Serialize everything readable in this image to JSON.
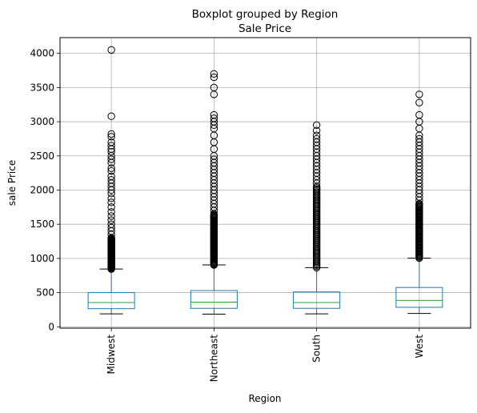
{
  "chart_data": {
    "type": "boxplot",
    "suptitle": "Boxplot grouped by Region",
    "title": "Sale Price",
    "xlabel": "Region",
    "ylabel": "sale Price",
    "ylim": [
      -20,
      4230
    ],
    "yticks": [
      0,
      500,
      1000,
      1500,
      2000,
      2500,
      3000,
      3500,
      4000
    ],
    "grid": true,
    "colors": {
      "box": "#1f77b4",
      "median": "#2ca02c",
      "grid": "#b0b0b0",
      "axis": "#000000"
    },
    "categories": [
      "Midwest",
      "Northeast",
      "South",
      "West"
    ],
    "boxes": [
      {
        "name": "Midwest",
        "whisker_low": 190,
        "q1": 265,
        "median": 355,
        "q3": 500,
        "whisker_high": 845,
        "outlier_range": [
          845,
          1300
        ],
        "outliers": [
          1350,
          1400,
          1450,
          1500,
          1560,
          1620,
          1680,
          1750,
          1820,
          1880,
          1950,
          2000,
          2050,
          2100,
          2150,
          2200,
          2280,
          2320,
          2400,
          2450,
          2500,
          2560,
          2600,
          2650,
          2700,
          2780,
          2820,
          3080,
          4050
        ]
      },
      {
        "name": "Northeast",
        "whisker_low": 185,
        "q1": 270,
        "median": 360,
        "q3": 530,
        "whisker_high": 905,
        "outlier_range": [
          905,
          1650
        ],
        "outliers": [
          1700,
          1750,
          1800,
          1850,
          1900,
          1950,
          2000,
          2050,
          2100,
          2150,
          2200,
          2250,
          2300,
          2350,
          2400,
          2450,
          2500,
          2600,
          2700,
          2800,
          2900,
          2950,
          3000,
          3050,
          3100,
          3400,
          3500,
          3650,
          3700
        ]
      },
      {
        "name": "South",
        "whisker_low": 190,
        "q1": 270,
        "median": 355,
        "q3": 510,
        "whisker_high": 865,
        "outlier_range": [
          865,
          2050
        ],
        "outliers": [
          2100,
          2150,
          2200,
          2250,
          2300,
          2350,
          2400,
          2450,
          2500,
          2550,
          2600,
          2650,
          2700,
          2750,
          2800,
          2870,
          2950
        ]
      },
      {
        "name": "West",
        "whisker_low": 195,
        "q1": 285,
        "median": 385,
        "q3": 575,
        "whisker_high": 1005,
        "outlier_range": [
          1005,
          1800
        ],
        "outliers": [
          1850,
          1900,
          1950,
          2000,
          2050,
          2100,
          2150,
          2200,
          2250,
          2300,
          2350,
          2400,
          2450,
          2500,
          2550,
          2600,
          2650,
          2700,
          2750,
          2800,
          2900,
          3000,
          3100,
          3280,
          3400
        ]
      }
    ]
  }
}
